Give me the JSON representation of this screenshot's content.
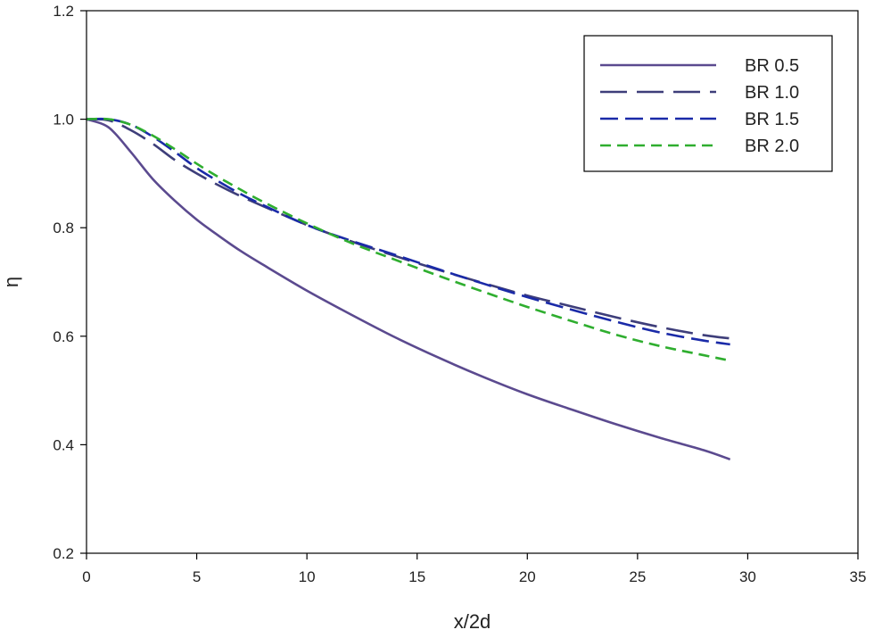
{
  "chart_data": {
    "type": "line",
    "xlabel": "x/2d",
    "ylabel": "η",
    "xlim": [
      0,
      35
    ],
    "ylim": [
      0.2,
      1.2
    ],
    "xticks": [
      0,
      5,
      10,
      15,
      20,
      25,
      30,
      35
    ],
    "yticks": [
      0.2,
      0.4,
      0.6,
      0.8,
      1.0,
      1.2
    ],
    "xtick_labels": [
      "0",
      "5",
      "10",
      "15",
      "20",
      "25",
      "30",
      "35"
    ],
    "ytick_labels": [
      "0.2",
      "0.4",
      "0.6",
      "0.8",
      "1.0",
      "1.2"
    ],
    "grid": false,
    "legend_position": "top-right",
    "series": [
      {
        "name": "BR 0.5",
        "color": "#5b4a8f",
        "dash": "solid",
        "x": [
          0,
          1,
          2,
          3,
          4,
          5,
          6,
          7,
          8,
          10,
          12,
          14,
          16,
          18,
          20,
          22,
          24,
          26,
          28,
          29.2
        ],
        "y": [
          1.0,
          0.985,
          0.94,
          0.89,
          0.85,
          0.815,
          0.785,
          0.757,
          0.732,
          0.684,
          0.64,
          0.598,
          0.56,
          0.525,
          0.493,
          0.465,
          0.438,
          0.413,
          0.39,
          0.373
        ]
      },
      {
        "name": "BR 1.0",
        "color": "#3e3e7a",
        "dash": "long-dash",
        "x": [
          0,
          1,
          2,
          3,
          4,
          5,
          6,
          7,
          8,
          10,
          12,
          14,
          16,
          18,
          20,
          22,
          24,
          26,
          28,
          29.2
        ],
        "y": [
          1.0,
          0.998,
          0.98,
          0.955,
          0.925,
          0.9,
          0.878,
          0.858,
          0.84,
          0.805,
          0.775,
          0.748,
          0.722,
          0.698,
          0.675,
          0.655,
          0.635,
          0.617,
          0.602,
          0.596
        ]
      },
      {
        "name": "BR 1.5",
        "color": "#1a2aa8",
        "dash": "medium-dash",
        "x": [
          0,
          1,
          2,
          3,
          4,
          5,
          6,
          7,
          8,
          10,
          12,
          14,
          16,
          18,
          20,
          22,
          24,
          26,
          28,
          29.2
        ],
        "y": [
          1.0,
          1.0,
          0.99,
          0.968,
          0.94,
          0.91,
          0.885,
          0.862,
          0.842,
          0.805,
          0.776,
          0.75,
          0.723,
          0.697,
          0.672,
          0.649,
          0.627,
          0.607,
          0.592,
          0.585
        ]
      },
      {
        "name": "BR 2.0",
        "color": "#2fae2f",
        "dash": "short-dash",
        "x": [
          0,
          1,
          2,
          3,
          4,
          5,
          6,
          7,
          8,
          10,
          12,
          14,
          16,
          18,
          20,
          22,
          24,
          26,
          28,
          29.2
        ],
        "y": [
          1.0,
          1.0,
          0.99,
          0.97,
          0.945,
          0.918,
          0.893,
          0.87,
          0.848,
          0.808,
          0.772,
          0.741,
          0.711,
          0.682,
          0.654,
          0.628,
          0.603,
          0.582,
          0.565,
          0.555
        ]
      }
    ]
  }
}
